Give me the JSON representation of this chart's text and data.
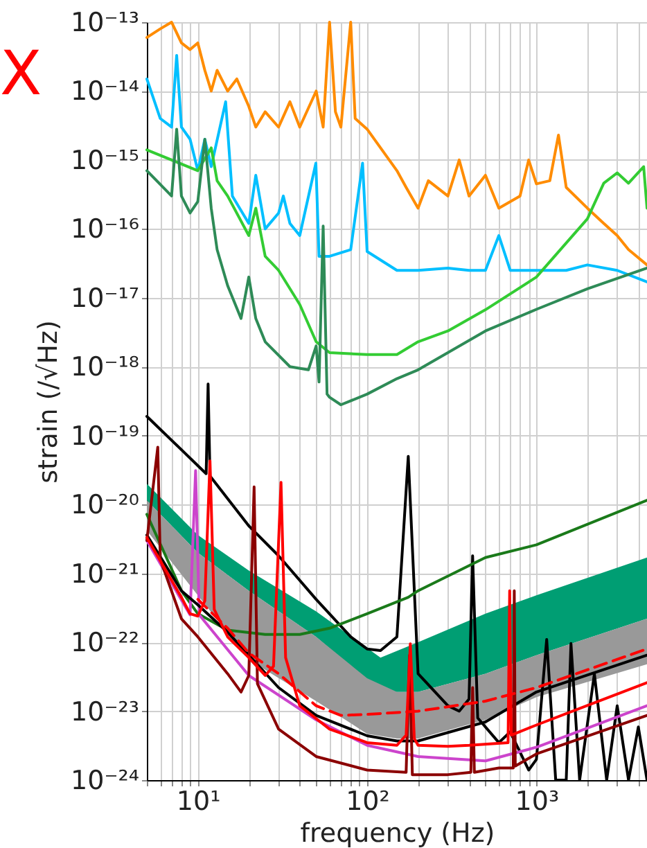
{
  "chart_data": {
    "type": "line",
    "xlabel": "frequency (Hz)",
    "ylabel": "strain (/√Hz)",
    "annotations": [
      "X"
    ],
    "log": "xy",
    "grid": true,
    "marker": "none",
    "line_style": "solid",
    "xlim": [
      5,
      4500
    ],
    "ylim": [
      1e-24,
      1e-13
    ],
    "xticks": [
      {
        "value": 5,
        "label": null
      },
      {
        "value": 6,
        "label": null
      },
      {
        "value": 7,
        "label": null
      },
      {
        "value": 8,
        "label": null
      },
      {
        "value": 9,
        "label": null
      },
      {
        "value": 10,
        "label": "10¹"
      },
      {
        "value": 20,
        "label": null
      },
      {
        "value": 30,
        "label": null
      },
      {
        "value": 40,
        "label": null
      },
      {
        "value": 50,
        "label": null
      },
      {
        "value": 60,
        "label": null
      },
      {
        "value": 70,
        "label": null
      },
      {
        "value": 80,
        "label": null
      },
      {
        "value": 90,
        "label": null
      },
      {
        "value": 100,
        "label": "10²"
      },
      {
        "value": 200,
        "label": null
      },
      {
        "value": 300,
        "label": null
      },
      {
        "value": 400,
        "label": null
      },
      {
        "value": 500,
        "label": null
      },
      {
        "value": 600,
        "label": null
      },
      {
        "value": 700,
        "label": null
      },
      {
        "value": 800,
        "label": null
      },
      {
        "value": 900,
        "label": null
      },
      {
        "value": 1000,
        "label": "10³"
      },
      {
        "value": 2000,
        "label": null
      },
      {
        "value": 3000,
        "label": null
      },
      {
        "value": 4000,
        "label": null
      }
    ],
    "yticks": [
      {
        "value": 1e-24,
        "label": "10⁻²⁴"
      },
      {
        "value": 1e-23,
        "label": "10⁻²³"
      },
      {
        "value": 1e-22,
        "label": "10⁻²²"
      },
      {
        "value": 1e-21,
        "label": "10⁻²¹"
      },
      {
        "value": 1e-20,
        "label": "10⁻²⁰"
      },
      {
        "value": 1e-19,
        "label": "10⁻¹⁹"
      },
      {
        "value": 1e-18,
        "label": "10⁻¹⁸"
      },
      {
        "value": 1e-17,
        "label": "10⁻¹⁷"
      },
      {
        "value": 1e-16,
        "label": "10⁻¹⁶"
      },
      {
        "value": 1e-15,
        "label": "10⁻¹⁵"
      },
      {
        "value": 1e-14,
        "label": "10⁻¹⁴"
      },
      {
        "value": 1e-13,
        "label": "10⁻¹³"
      }
    ],
    "series": [
      {
        "color": "#009e73",
        "x": [
          5,
          10,
          20,
          50,
          120,
          200,
          500,
          1000,
          4500
        ],
        "values": [
          null,
          null,
          null,
          null,
          null,
          null,
          null,
          null,
          null
        ],
        "upper": [
          2e-20,
          3.6e-21,
          1.1e-21,
          2.8e-22,
          6e-23,
          1e-22,
          2.6e-22,
          4.8e-22,
          1.7e-21
        ],
        "lower": [
          1.15e-20,
          2e-21,
          5.6e-22,
          1.2e-22,
          1.9e-23,
          1.9e-23,
          3.5e-23,
          6.5e-23,
          2.2e-22
        ]
      },
      {
        "color": "#999999",
        "x": [
          5,
          10,
          20,
          50,
          100,
          150,
          200,
          500,
          1000,
          4500
        ],
        "values": [
          null,
          null,
          null,
          null,
          null,
          null,
          null,
          null,
          null,
          null
        ],
        "upper": [
          1.15e-20,
          2e-21,
          5.6e-22,
          1.2e-22,
          3e-23,
          1.9e-23,
          1.9e-23,
          3.5e-23,
          6.5e-23,
          2.2e-22
        ],
        "lower": [
          4.2e-21,
          4.8e-22,
          5.6e-23,
          1.4e-23,
          4.7e-24,
          4e-24,
          4e-24,
          7.5e-24,
          1.6e-23,
          4.8e-23
        ]
      },
      {
        "color": "#ff8c00",
        "x": [
          5,
          6,
          7,
          8,
          9,
          10,
          11,
          12,
          13,
          15,
          17,
          20,
          22,
          25,
          30,
          35,
          40,
          50,
          55,
          60,
          65,
          70,
          80,
          85,
          100,
          120,
          150,
          170,
          200,
          230,
          300,
          350,
          400,
          500,
          600,
          800,
          900,
          1000,
          1200,
          1350,
          1500,
          2000,
          2500,
          3000,
          3500,
          4500
        ],
        "values": [
          6e-14,
          8e-14,
          1e-13,
          5e-14,
          4e-14,
          5e-14,
          2e-14,
          1e-14,
          2e-14,
          1e-14,
          1.5e-14,
          6e-15,
          3e-15,
          5e-15,
          3e-15,
          7e-15,
          3e-15,
          1e-14,
          3e-15,
          1e-13,
          5e-15,
          3e-15,
          1e-13,
          4e-15,
          2.8e-15,
          1.5e-15,
          7e-16,
          4e-16,
          2e-16,
          5e-16,
          3e-16,
          1e-15,
          3e-16,
          6e-16,
          2e-16,
          3e-16,
          1e-15,
          4.5e-16,
          5e-16,
          2.3e-15,
          4e-16,
          2e-16,
          1.2e-16,
          8e-17,
          5e-17,
          3e-17
        ]
      },
      {
        "color": "#00bfff",
        "x": [
          5,
          6,
          7,
          7.5,
          8,
          9,
          10,
          11,
          12,
          14.6,
          16,
          20,
          22,
          25,
          30,
          32,
          35,
          40,
          49.8,
          52,
          60,
          80,
          94,
          100,
          150,
          200,
          300,
          400,
          500,
          600,
          700,
          1000,
          1500,
          2000,
          3000,
          4500
        ],
        "values": [
          1.5e-14,
          4e-15,
          3e-15,
          3.3e-14,
          3e-15,
          2e-15,
          7e-16,
          2e-15,
          8e-16,
          7e-15,
          3e-16,
          1.2e-16,
          6e-16,
          1e-16,
          1.7e-16,
          3e-16,
          1.2e-16,
          8e-17,
          9e-16,
          4e-17,
          4e-17,
          5e-17,
          9e-16,
          4.7e-17,
          2.5e-17,
          2.5e-17,
          2.7e-17,
          2.5e-17,
          2.5e-17,
          8e-17,
          2.5e-17,
          2.5e-17,
          2.5e-17,
          3e-17,
          2.5e-17,
          1.7e-17
        ]
      },
      {
        "color": "#33cc33",
        "x": [
          5,
          10,
          12,
          13,
          15,
          20,
          22,
          25,
          30,
          40,
          50,
          60,
          100,
          150,
          200,
          300,
          500,
          1000,
          2000,
          2500,
          3000,
          3500,
          4300,
          4500
        ],
        "values": [
          1.4e-15,
          7e-16,
          1.5e-15,
          5e-16,
          3e-16,
          8e-17,
          2e-16,
          4e-17,
          2.5e-17,
          8e-18,
          2.3e-18,
          1.6e-18,
          1.5e-18,
          1.5e-18,
          2.3e-18,
          3.3e-18,
          6.7e-18,
          2e-17,
          1.4e-16,
          4.6e-16,
          6.5e-16,
          4.6e-16,
          8e-16,
          2e-16
        ]
      },
      {
        "color": "#2e8b57",
        "x": [
          5,
          7,
          7.5,
          8,
          9,
          10,
          11,
          12,
          13,
          15,
          18,
          20,
          22,
          25,
          35,
          45,
          50,
          52,
          55,
          58,
          60,
          70,
          100,
          150,
          200,
          300,
          500,
          1000,
          2000,
          4500
        ],
        "values": [
          7e-16,
          3e-16,
          2.8e-15,
          3e-16,
          1.7e-16,
          2.5e-16,
          2e-15,
          2e-16,
          5e-17,
          1.5e-17,
          5e-18,
          2e-17,
          5e-18,
          2.3e-18,
          1e-18,
          9e-19,
          2e-18,
          6e-19,
          1.1e-16,
          4e-19,
          3.6e-19,
          2.8e-19,
          4e-19,
          6.7e-19,
          9e-19,
          1.6e-18,
          3.3e-18,
          6.8e-18,
          1.35e-17,
          2.7e-17
        ]
      },
      {
        "color": "#000000",
        "x": [
          5,
          11.2,
          11.5,
          11.8,
          20,
          30,
          50,
          80,
          100,
          120,
          150,
          175,
          200,
          300,
          350,
          400,
          420,
          450,
          600,
          700,
          900,
          1000,
          1150,
          1300,
          1500,
          1600,
          1800,
          2200,
          2600,
          3000,
          3500,
          4000,
          4500
        ],
        "values": [
          1.9e-19,
          2.8e-20,
          5.6e-19,
          2.6e-20,
          4.9e-21,
          1.8e-21,
          4.2e-22,
          1.2e-22,
          8e-23,
          7.6e-23,
          1.2e-22,
          5e-20,
          3.5e-23,
          1.2e-23,
          1e-23,
          1.5e-23,
          1.8e-21,
          8e-24,
          3.5e-24,
          5e-24,
          1.4e-24,
          2e-24,
          1.1e-22,
          1e-24,
          1e-24,
          9.6e-23,
          1e-24,
          3.5e-23,
          1e-24,
          1.2e-23,
          1e-24,
          5.9e-24,
          1e-24
        ]
      },
      {
        "color": "#1a7a1a",
        "x": [
          5,
          8,
          10,
          15,
          25,
          40,
          60,
          100,
          175,
          200,
          500,
          1000,
          4500
        ],
        "values": [
          7.2e-21,
          5.6e-22,
          2.6e-22,
          1.5e-22,
          1.3e-22,
          1.3e-22,
          1.6e-22,
          2.6e-22,
          4.5e-22,
          5.6e-22,
          1.7e-21,
          2.6e-21,
          1.15e-20
        ]
      },
      {
        "color": "#cc44cc",
        "x": [
          5,
          9,
          9.7,
          10.2,
          20,
          50,
          100,
          200,
          500,
          1000,
          4500
        ],
        "values": [
          3e-21,
          2.5e-22,
          3.1e-20,
          2.5e-22,
          3.3e-23,
          7.5e-24,
          3.2e-24,
          2.2e-24,
          1.9e-24,
          3e-24,
          1.2e-23
        ]
      },
      {
        "color": "#000000",
        "x": [
          5,
          8,
          10,
          15,
          20,
          30,
          50,
          100,
          150,
          200,
          500,
          1000,
          4500
        ],
        "values": [
          3.6e-21,
          5.6e-22,
          3.5e-22,
          1.4e-22,
          6.5e-23,
          2.2e-23,
          8.7e-24,
          4.4e-24,
          3.7e-24,
          3.7e-24,
          7e-24,
          1.9e-23,
          6.5e-23
        ]
      },
      {
        "color": "#8b0000",
        "x": [
          5,
          5.8,
          6,
          8,
          10,
          15,
          18,
          20,
          21.5,
          22.5,
          30,
          50,
          100,
          170,
          178,
          185,
          300,
          410,
          420,
          430,
          600,
          730,
          740,
          750,
          1000,
          4500
        ],
        "values": [
          3e-21,
          6.8e-20,
          1.6e-21,
          2.2e-22,
          1.2e-22,
          3.5e-23,
          1.9e-23,
          3.3e-23,
          1.8e-20,
          2.5e-23,
          5.5e-24,
          2.2e-24,
          1.4e-24,
          1.3e-24,
          6.5e-23,
          1.2e-24,
          1.2e-24,
          1.3e-24,
          2.2e-23,
          1.3e-24,
          1.5e-24,
          1.5e-24,
          5.6e-22,
          1.6e-24,
          2.4e-24,
          8.7e-24
        ]
      },
      {
        "color": "#ff0000",
        "x": [
          5,
          8,
          9,
          10,
          11,
          11.8,
          12.5,
          15,
          20,
          25,
          28,
          31,
          33,
          40,
          60,
          100,
          150,
          170,
          180,
          190,
          200,
          300,
          400,
          680,
          695,
          710,
          1000,
          4500
        ],
        "values": [
          3.3e-21,
          4.5e-22,
          2.6e-22,
          2.4e-22,
          4e-22,
          4.3e-20,
          3e-22,
          1.2e-22,
          6e-23,
          3.3e-23,
          4.5e-23,
          2.1e-20,
          6e-23,
          1.2e-23,
          5.5e-24,
          3.5e-24,
          3.2e-24,
          4.5e-24,
          9.5e-23,
          4e-24,
          3.2e-24,
          3.1e-24,
          3.2e-24,
          3.5e-24,
          5.6e-22,
          4.5e-24,
          6.3e-24,
          2.6e-23
        ]
      },
      {
        "color": "#ff0000",
        "line_style": "dashed",
        "x": [
          10,
          15,
          20,
          30,
          50,
          70,
          100,
          200,
          500,
          1000,
          4500
        ],
        "values": [
          4.2e-22,
          1.6e-22,
          7e-23,
          3.5e-23,
          1.2e-23,
          8.7e-24,
          9e-24,
          1e-23,
          1.4e-23,
          2.2e-23,
          8e-23
        ]
      }
    ]
  }
}
